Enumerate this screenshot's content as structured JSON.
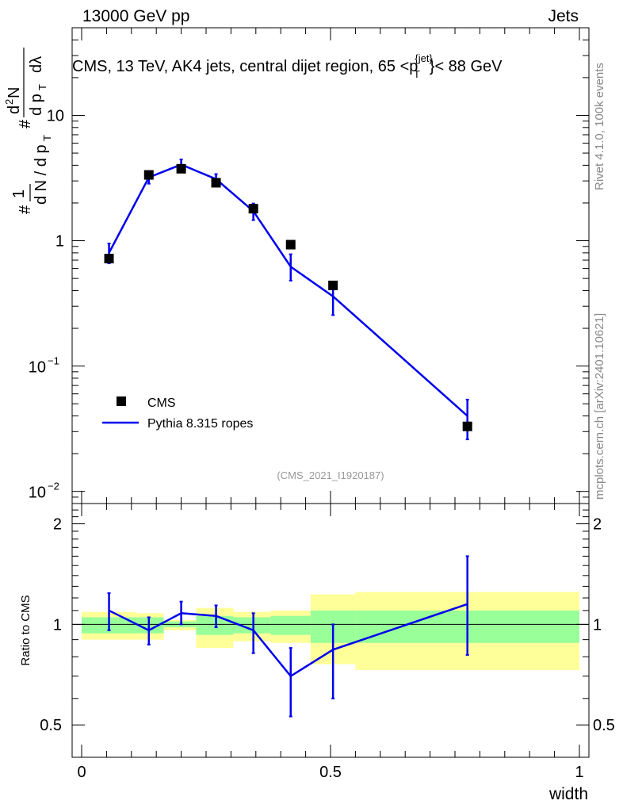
{
  "header": {
    "left": "13000 GeV pp",
    "right": "Jets",
    "analysis_id": "(CMS_2021_I1920187)",
    "side_top": "Rivet 4.1.0,  100k events",
    "side_bottom": "mcplots.cern.ch [arXiv:2401.10621]"
  },
  "chart_data": [
    {
      "type": "scatter",
      "title": "CMS, 13 TeV, AK4 jets, central dijet region, 65 <p",
      "title_sup": "{jet}",
      "title_sub": "T",
      "title_tail": "}< 88 GeV",
      "ylabel": "1/N dN/dp_T / d2N/dp_T dλ",
      "yscale": "log",
      "ylim": [
        0.008,
        50
      ],
      "xlim": [
        0,
        1
      ],
      "y_ticks": [
        {
          "value": 0.01,
          "base": "10",
          "exp": "−2"
        },
        {
          "value": 0.1,
          "base": "10",
          "exp": "−1"
        },
        {
          "value": 1,
          "label": "1"
        },
        {
          "value": 10,
          "label": "10"
        }
      ],
      "legend": [
        "CMS",
        "Pythia 8.315 ropes"
      ],
      "series": [
        {
          "name": "CMS",
          "x": [
            0.055,
            0.135,
            0.2,
            0.27,
            0.345,
            0.42,
            0.505,
            0.775
          ],
          "y": [
            0.72,
            3.35,
            3.75,
            2.9,
            1.8,
            0.93,
            0.44,
            0.033
          ]
        },
        {
          "name": "Pythia 8.315 ropes",
          "x": [
            0.055,
            0.135,
            0.2,
            0.27,
            0.345,
            0.42,
            0.505,
            0.775
          ],
          "y": [
            0.8,
            3.2,
            4.05,
            3.1,
            1.72,
            0.62,
            0.36,
            0.04
          ],
          "y_low": [
            0.66,
            2.85,
            3.65,
            2.78,
            1.46,
            0.48,
            0.255,
            0.026
          ],
          "y_high": [
            0.95,
            3.55,
            4.45,
            3.4,
            1.98,
            0.78,
            0.46,
            0.054
          ]
        }
      ]
    },
    {
      "type": "line",
      "title": "",
      "xlabel": "width",
      "ylabel": "Ratio to CMS",
      "ylim": [
        0.4,
        2.3
      ],
      "xlim": [
        0,
        1
      ],
      "x_ticks": [
        0,
        0.5,
        1
      ],
      "y_ticks": [
        0.5,
        1,
        2
      ],
      "reference_line": 1,
      "bands": [
        {
          "x0": 0.0,
          "x1": 0.11,
          "stat": [
            0.94,
            1.05
          ],
          "total": [
            0.9,
            1.09
          ]
        },
        {
          "x0": 0.11,
          "x1": 0.165,
          "stat": [
            0.94,
            1.05
          ],
          "total": [
            0.9,
            1.08
          ]
        },
        {
          "x0": 0.165,
          "x1": 0.23,
          "stat": [
            0.98,
            1.02
          ],
          "total": [
            0.96,
            1.03
          ]
        },
        {
          "x0": 0.23,
          "x1": 0.305,
          "stat": [
            0.93,
            1.06
          ],
          "total": [
            0.85,
            1.12
          ]
        },
        {
          "x0": 0.305,
          "x1": 0.38,
          "stat": [
            0.94,
            1.05
          ],
          "total": [
            0.89,
            1.09
          ]
        },
        {
          "x0": 0.38,
          "x1": 0.46,
          "stat": [
            0.93,
            1.06
          ],
          "total": [
            0.88,
            1.1
          ]
        },
        {
          "x0": 0.46,
          "x1": 0.55,
          "stat": [
            0.88,
            1.1
          ],
          "total": [
            0.76,
            1.23
          ]
        },
        {
          "x0": 0.55,
          "x1": 1.0,
          "stat": [
            0.88,
            1.1
          ],
          "total": [
            0.73,
            1.25
          ]
        }
      ],
      "series": [
        {
          "name": "Pythia 8.315 ropes / CMS",
          "x": [
            0.055,
            0.135,
            0.2,
            0.27,
            0.345,
            0.42,
            0.505,
            0.775
          ],
          "y": [
            1.1,
            0.96,
            1.08,
            1.06,
            0.96,
            0.7,
            0.84,
            1.15
          ],
          "y_low": [
            0.96,
            0.87,
            1.0,
            0.98,
            0.82,
            0.53,
            0.6,
            0.81
          ],
          "y_high": [
            1.24,
            1.05,
            1.17,
            1.14,
            1.08,
            0.85,
            1.0,
            1.6
          ]
        }
      ]
    }
  ]
}
